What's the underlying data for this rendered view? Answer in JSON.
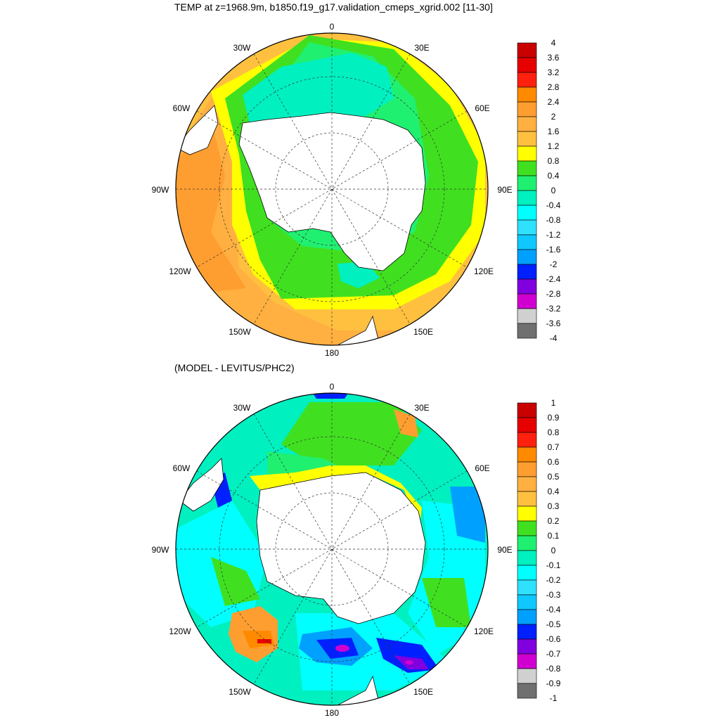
{
  "panel1": {
    "title": "TEMP at z=1968.9m, b1850.f19_g17.validation_cmeps_xgrid.002 [11-30]",
    "lon_labels": [
      "0",
      "30E",
      "60E",
      "90E",
      "120E",
      "150E",
      "180",
      "150W",
      "120W",
      "90W",
      "60W",
      "30W"
    ],
    "colorbar": {
      "labels": [
        "4",
        "3.6",
        "3.2",
        "2.8",
        "2.4",
        "2",
        "1.6",
        "1.2",
        "0.8",
        "0.4",
        "0",
        "-0.4",
        "-0.8",
        "-1.2",
        "-1.6",
        "-2",
        "-2.4",
        "-2.8",
        "-3.2",
        "-3.6",
        "-4"
      ],
      "colors": [
        "#c80000",
        "#e60000",
        "#ff2010",
        "#ff8a00",
        "#ff9e30",
        "#ffb040",
        "#ffc040",
        "#ffff00",
        "#40e020",
        "#20f070",
        "#00f0c0",
        "#00ffff",
        "#30e0ff",
        "#10c8ff",
        "#00a0ff",
        "#0020ff",
        "#8000e0",
        "#d000d0",
        "#d0d0d0",
        "#707070"
      ]
    }
  },
  "panel2": {
    "title": "(MODEL - LEVITUS/PHC2)",
    "lon_labels": [
      "0",
      "30E",
      "60E",
      "90E",
      "120E",
      "150E",
      "180",
      "150W",
      "120W",
      "90W",
      "60W",
      "30W"
    ],
    "colorbar": {
      "labels": [
        "1",
        "0.9",
        "0.8",
        "0.7",
        "0.6",
        "0.5",
        "0.4",
        "0.3",
        "0.2",
        "0.1",
        "0",
        "-0.1",
        "-0.2",
        "-0.3",
        "-0.4",
        "-0.5",
        "-0.6",
        "-0.7",
        "-0.8",
        "-0.9",
        "-1"
      ],
      "colors": [
        "#c80000",
        "#e60000",
        "#ff2010",
        "#ff8a00",
        "#ff9e30",
        "#ffb040",
        "#ffc040",
        "#ffff00",
        "#40e020",
        "#20f070",
        "#00f0c0",
        "#00ffff",
        "#30e0ff",
        "#10c8ff",
        "#00a0ff",
        "#0020ff",
        "#8000e0",
        "#d000d0",
        "#d0d0d0",
        "#707070"
      ]
    }
  }
}
